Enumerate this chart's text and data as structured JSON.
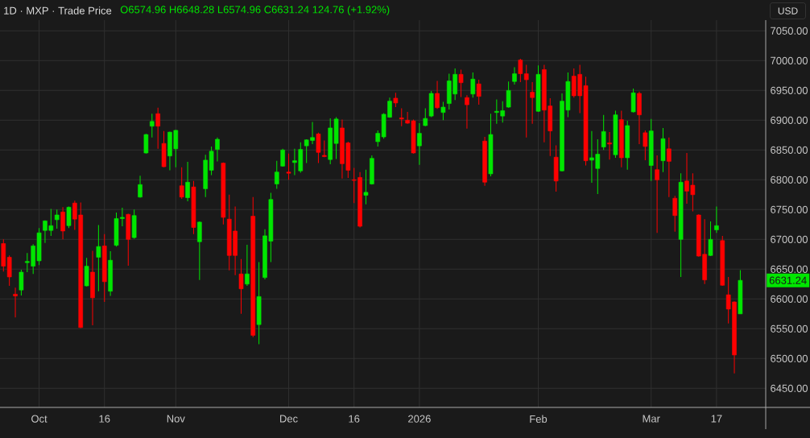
{
  "chart_data": {
    "type": "candlestick",
    "title": "1D · MXP · Trade Price",
    "subtitle": "O6574.96 H6648.28 L6574.96 C6631.24 124.76 (+1.92%)",
    "ylabel": "USD",
    "annotations": [
      "6631.24"
    ],
    "categories": [
      null,
      null,
      null,
      null,
      null,
      null,
      "Oct",
      null,
      null,
      null,
      null,
      null,
      null,
      null,
      null,
      null,
      null,
      "16",
      null,
      null,
      null,
      null,
      null,
      null,
      null,
      null,
      null,
      null,
      null,
      "Nov",
      null,
      null,
      null,
      null,
      null,
      null,
      null,
      null,
      null,
      null,
      null,
      null,
      null,
      null,
      null,
      null,
      null,
      null,
      "Dec",
      null,
      null,
      null,
      null,
      null,
      null,
      null,
      null,
      null,
      null,
      "16",
      null,
      null,
      null,
      null,
      null,
      null,
      null,
      null,
      null,
      null,
      "2026",
      null,
      null,
      null,
      null,
      null,
      null,
      null,
      null,
      null,
      null,
      null,
      null,
      null,
      null,
      null,
      null,
      null,
      null,
      null,
      "Feb",
      null,
      null,
      null,
      null,
      null,
      null,
      null,
      null,
      null,
      null,
      null,
      null,
      null,
      null,
      null,
      null,
      null,
      null,
      "Mar",
      null,
      null,
      null,
      null,
      null,
      null,
      null,
      null,
      null,
      null,
      "17",
      null,
      null,
      null,
      null
    ],
    "ohlc": [
      [
        6693,
        6700,
        6646,
        6655
      ],
      [
        6670,
        6673,
        6622,
        6637
      ],
      [
        6608,
        6619,
        6569,
        6605
      ],
      [
        6615,
        6649,
        6606,
        6645
      ],
      [
        6661,
        6677,
        6645,
        6663
      ],
      [
        6655,
        6692,
        6642,
        6689
      ],
      [
        6664,
        6719,
        6657,
        6711
      ],
      [
        6715,
        6732,
        6694,
        6731
      ],
      [
        6715,
        6751,
        6706,
        6723
      ],
      [
        6733,
        6750,
        6718,
        6741
      ],
      [
        6746,
        6754,
        6700,
        6714
      ],
      [
        6723,
        6755,
        6719,
        6754
      ],
      [
        6761,
        6765,
        6716,
        6734
      ],
      [
        6741,
        6762,
        6551,
        6552
      ],
      [
        6622,
        6669,
        6621,
        6655
      ],
      [
        6645,
        6681,
        6556,
        6602
      ],
      [
        6670,
        6724,
        6613,
        6688
      ],
      [
        6689,
        6709,
        6595,
        6629
      ],
      [
        6613,
        6680,
        6605,
        6665
      ],
      [
        6690,
        6745,
        6688,
        6735
      ],
      [
        6735,
        6753,
        6722,
        6737
      ],
      [
        6742,
        6743,
        6656,
        6700
      ],
      [
        6703,
        6750,
        6701,
        6740
      ],
      [
        6771,
        6807,
        6770,
        6792
      ],
      [
        6845,
        6877,
        6844,
        6876
      ],
      [
        6890,
        6911,
        6871,
        6898
      ],
      [
        6911,
        6921,
        6852,
        6890
      ],
      [
        6861,
        6882,
        6821,
        6822
      ],
      [
        6840,
        6881,
        6816,
        6880
      ],
      [
        6852,
        6884,
        6821,
        6883
      ],
      [
        6790,
        6821,
        6768,
        6771
      ],
      [
        6770,
        6830,
        6764,
        6796
      ],
      [
        6788,
        6798,
        6709,
        6720
      ],
      [
        6696,
        6730,
        6632,
        6729
      ],
      [
        6785,
        6842,
        6771,
        6833
      ],
      [
        6816,
        6856,
        6808,
        6848
      ],
      [
        6851,
        6871,
        6831,
        6868
      ],
      [
        6828,
        6829,
        6725,
        6737
      ],
      [
        6734,
        6775,
        6648,
        6673
      ],
      [
        6714,
        6755,
        6640,
        6673
      ],
      [
        6642,
        6667,
        6575,
        6617
      ],
      [
        6625,
        6691,
        6622,
        6642
      ],
      [
        6739,
        6771,
        6536,
        6539
      ],
      [
        6557,
        6662,
        6524,
        6604
      ],
      [
        6636,
        6717,
        6633,
        6706
      ],
      [
        6697,
        6778,
        6662,
        6767
      ],
      [
        6793,
        6832,
        6785,
        6813
      ],
      [
        6823,
        6852,
        6822,
        6850
      ],
      [
        6813,
        6844,
        6800,
        6811
      ],
      [
        6829,
        6852,
        6808,
        6832
      ],
      [
        6815,
        6863,
        6812,
        6851
      ],
      [
        6857,
        6868,
        6828,
        6867
      ],
      [
        6866,
        6897,
        6860,
        6871
      ],
      [
        6877,
        6879,
        6828,
        6846
      ],
      [
        6841,
        6866,
        6838,
        6839
      ],
      [
        6834,
        6903,
        6826,
        6887
      ],
      [
        6861,
        6905,
        6835,
        6902
      ],
      [
        6887,
        6901,
        6802,
        6827
      ],
      [
        6862,
        6864,
        6803,
        6816
      ],
      [
        6800,
        6820,
        6761,
        6799
      ],
      [
        6804,
        6813,
        6720,
        6722
      ],
      [
        6774,
        6817,
        6759,
        6779
      ],
      [
        6793,
        6841,
        6792,
        6836
      ],
      [
        6864,
        6883,
        6856,
        6878
      ],
      [
        6872,
        6912,
        6869,
        6910
      ],
      [
        6905,
        6938,
        6904,
        6932
      ],
      [
        6937,
        6946,
        6922,
        6929
      ],
      [
        6904,
        6920,
        6890,
        6902
      ],
      [
        6900,
        6914,
        6894,
        6895
      ],
      [
        6899,
        6901,
        6844,
        6845
      ],
      [
        6857,
        6895,
        6825,
        6878
      ],
      [
        6891,
        6920,
        6890,
        6903
      ],
      [
        6907,
        6949,
        6905,
        6945
      ],
      [
        6945,
        6966,
        6919,
        6921
      ],
      [
        6913,
        6931,
        6900,
        6922
      ],
      [
        6928,
        6978,
        6918,
        6966
      ],
      [
        6944,
        6987,
        6934,
        6977
      ],
      [
        6977,
        6985,
        6939,
        6963
      ],
      [
        6938,
        6942,
        6886,
        6926
      ],
      [
        6944,
        6980,
        6938,
        6969
      ],
      [
        6961,
        6968,
        6926,
        6940
      ],
      [
        6865,
        6872,
        6790,
        6796
      ],
      [
        6810,
        6911,
        6806,
        6876
      ],
      [
        6913,
        6935,
        6894,
        6915
      ],
      [
        6907,
        6932,
        6896,
        6916
      ],
      [
        6922,
        6965,
        6921,
        6950
      ],
      [
        6965,
        6989,
        6960,
        6978
      ],
      [
        7001,
        7003,
        6964,
        6978
      ],
      [
        6978,
        6993,
        6871,
        6968
      ],
      [
        6947,
        6964,
        6894,
        6938
      ],
      [
        6915,
        6992,
        6914,
        6977
      ],
      [
        6985,
        6993,
        6863,
        6917
      ],
      [
        6924,
        6937,
        6840,
        6882
      ],
      [
        6838,
        6858,
        6780,
        6798
      ],
      [
        6815,
        6945,
        6814,
        6932
      ],
      [
        6917,
        6980,
        6905,
        6965
      ],
      [
        6974,
        6987,
        6938,
        6941
      ],
      [
        6977,
        6993,
        6912,
        6941
      ],
      [
        6958,
        6973,
        6824,
        6832
      ],
      [
        6833,
        6882,
        6795,
        6837
      ],
      [
        6819,
        6868,
        6776,
        6843
      ],
      [
        6855,
        6909,
        6850,
        6881
      ],
      [
        6862,
        6880,
        6834,
        6860
      ],
      [
        6842,
        6916,
        6837,
        6909
      ],
      [
        6901,
        6916,
        6821,
        6837
      ],
      [
        6837,
        6899,
        6817,
        6891
      ],
      [
        6914,
        6953,
        6913,
        6946
      ],
      [
        6945,
        6948,
        6860,
        6909
      ],
      [
        6879,
        6883,
        6833,
        6856
      ],
      [
        6824,
        6902,
        6798,
        6882
      ],
      [
        6817,
        6841,
        6711,
        6800
      ],
      [
        6832,
        6887,
        6813,
        6869
      ],
      [
        6852,
        6871,
        6771,
        6831
      ],
      [
        6769,
        6773,
        6713,
        6740
      ],
      [
        6700,
        6811,
        6637,
        6796
      ],
      [
        6798,
        6845,
        6760,
        6781
      ],
      [
        6791,
        6811,
        6747,
        6775
      ],
      [
        6741,
        6742,
        6671,
        6672
      ],
      [
        6675,
        6734,
        6625,
        6632
      ],
      [
        6673,
        6730,
        6672,
        6700
      ],
      [
        6716,
        6755,
        6711,
        6723
      ],
      [
        6698,
        6706,
        6622,
        6623
      ],
      [
        6607,
        6637,
        6559,
        6583
      ],
      [
        6595,
        6596,
        6475,
        6506
      ],
      [
        6574.96,
        6648.28,
        6574.96,
        6631.24
      ]
    ],
    "colors": [
      "#ff0000",
      "#ff0000",
      "#ff0000",
      "#00e600",
      "#00e600",
      "#00e600",
      "#00e600",
      "#00e600",
      "#00e600",
      "#00e600",
      "#ff0000",
      "#00e600",
      "#ff0000",
      "#ff0000",
      "#00e600",
      "#ff0000",
      "#00e600",
      "#ff0000",
      "#00e600",
      "#00e600",
      "#00e600",
      "#ff0000",
      "#00e600",
      "#00e600",
      "#00e600",
      "#00e600",
      "#ff0000",
      "#ff0000",
      "#00e600",
      "#00e600",
      "#ff0000",
      "#00e600",
      "#ff0000",
      "#00e600",
      "#00e600",
      "#00e600",
      "#00e600",
      "#ff0000",
      "#ff0000",
      "#ff0000",
      "#ff0000",
      "#00e600",
      "#ff0000",
      "#00e600",
      "#00e600",
      "#00e600",
      "#00e600",
      "#00e600",
      "#ff0000",
      "#00e600",
      "#00e600",
      "#00e600",
      "#00e600",
      "#ff0000",
      "#ff0000",
      "#00e600",
      "#00e600",
      "#ff0000",
      "#ff0000",
      "#ff0000",
      "#ff0000",
      "#00e600",
      "#00e600",
      "#00e600",
      "#00e600",
      "#00e600",
      "#ff0000",
      "#ff0000",
      "#ff0000",
      "#ff0000",
      "#00e600",
      "#00e600",
      "#00e600",
      "#ff0000",
      "#00e600",
      "#00e600",
      "#00e600",
      "#ff0000",
      "#ff0000",
      "#00e600",
      "#ff0000",
      "#ff0000",
      "#00e600",
      "#00e600",
      "#00e600",
      "#00e600",
      "#00e600",
      "#ff0000",
      "#ff0000",
      "#ff0000",
      "#00e600",
      "#ff0000",
      "#ff0000",
      "#ff0000",
      "#00e600",
      "#00e600",
      "#ff0000",
      "#ff0000",
      "#ff0000",
      "#00e600",
      "#00e600",
      "#00e600",
      "#ff0000",
      "#00e600",
      "#ff0000",
      "#00e600",
      "#00e600",
      "#ff0000",
      "#ff0000",
      "#00e600",
      "#ff0000",
      "#00e600",
      "#ff0000",
      "#ff0000",
      "#00e600",
      "#ff0000",
      "#ff0000",
      "#ff0000",
      "#ff0000",
      "#00e600",
      "#00e600",
      "#ff0000",
      "#ff0000",
      "#ff0000",
      "#00e600"
    ],
    "ylim": [
      6418,
      7068
    ],
    "yticks": [
      {
        "value": 6450,
        "label": "6450.00"
      },
      {
        "value": 6500,
        "label": "6500.00"
      },
      {
        "value": 6550,
        "label": "6550.00"
      },
      {
        "value": 6600,
        "label": "6600.00"
      },
      {
        "value": 6650,
        "label": "6650.00"
      },
      {
        "value": 6700,
        "label": "6700.00"
      },
      {
        "value": 6750,
        "label": "6750.00"
      },
      {
        "value": 6800,
        "label": "6800.00"
      },
      {
        "value": 6850,
        "label": "6850.00"
      },
      {
        "value": 6900,
        "label": "6900.00"
      },
      {
        "value": 6950,
        "label": "6950.00"
      },
      {
        "value": 7000,
        "label": "7000.00"
      },
      {
        "value": 7050,
        "label": "7050.00"
      }
    ],
    "grid": true
  }
}
